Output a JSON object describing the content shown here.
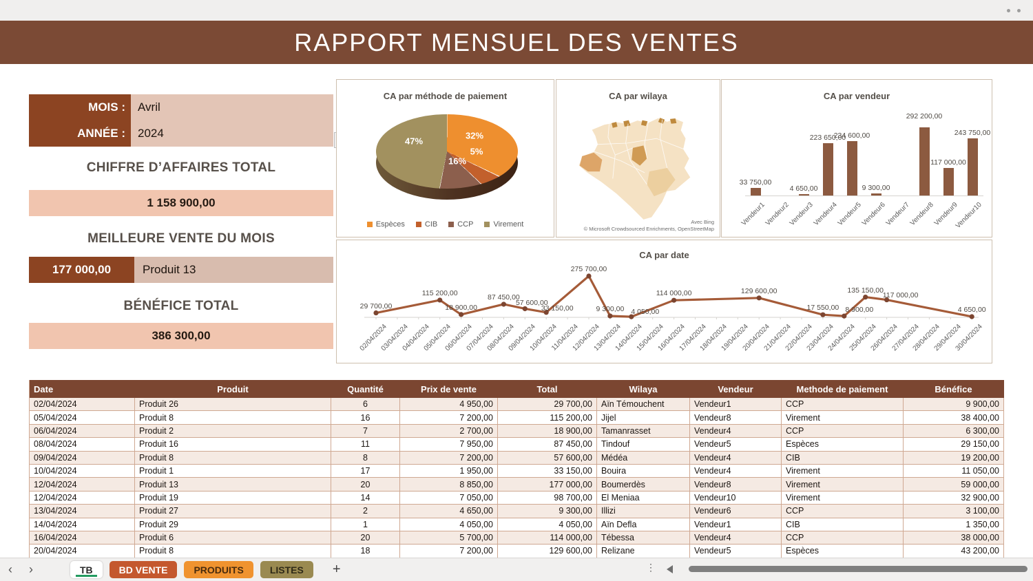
{
  "window": {
    "title_bar_dots": "window-control-dots"
  },
  "header": {
    "title": "RAPPORT MENSUEL DES VENTES"
  },
  "summary": {
    "mois_label": "MOIS :",
    "mois_value": "Avril",
    "annee_label": "ANNÉE :",
    "annee_value": "2024",
    "ca_title": "CHIFFRE D’AFFAIRES TOTAL",
    "ca_value": "1 158 900,00",
    "best_title": "MEILLEURE VENTE DU MOIS",
    "best_value": "177 000,00",
    "best_product": "Produit 13",
    "benefice_title": "BÉNÉFICE TOTAL",
    "benefice_value": "386 300,00"
  },
  "chart_data": [
    {
      "type": "pie",
      "title": "CA par méthode de paiement",
      "labels": [
        "Espèces",
        "CIB",
        "CCP",
        "Virement"
      ],
      "values": [
        32,
        5,
        16,
        47
      ],
      "value_labels": [
        "32%",
        "5%",
        "16%",
        "47%"
      ],
      "colors": [
        "#ee8f2f",
        "#c2602c",
        "#8c5f4d",
        "#a2915f"
      ],
      "legend_position": "bottom",
      "style": "3d-pie"
    },
    {
      "type": "map",
      "title": "CA par wilaya",
      "region": "Algérie",
      "attribution_1": "Avec Bing",
      "attribution_2": "© Microsoft Crowdsourced Enrichments, OpenStreetMap"
    },
    {
      "type": "bar",
      "title": "CA par vendeur",
      "categories": [
        "Vendeur1",
        "Vendeur2",
        "Vendeur3",
        "Vendeur4",
        "Vendeur5",
        "Vendeur6",
        "Vendeur7",
        "Vendeur8",
        "Vendeur9",
        "Vendeur10"
      ],
      "values": [
        33750,
        0,
        4650,
        223650,
        234600,
        9300,
        0,
        292200,
        117000,
        243750
      ],
      "data_labels": [
        "33 750,00",
        null,
        "4 650,00",
        "223 650,00",
        "234 600,00",
        "9 300,00",
        null,
        "292 200,00",
        "117 000,00",
        "243 750,00"
      ],
      "bar_color": "#8c5a40",
      "ylim": [
        0,
        292200
      ],
      "grid": false
    },
    {
      "type": "line",
      "title": "CA par date",
      "x": [
        "02/04/2024",
        "03/04/2024",
        "04/04/2024",
        "05/04/2024",
        "06/04/2024",
        "07/04/2024",
        "08/04/2024",
        "09/04/2024",
        "10/04/2024",
        "11/04/2024",
        "12/04/2024",
        "13/04/2024",
        "14/04/2024",
        "15/04/2024",
        "16/04/2024",
        "17/04/2024",
        "18/04/2024",
        "19/04/2024",
        "20/04/2024",
        "21/04/2024",
        "22/04/2024",
        "23/04/2024",
        "24/04/2024",
        "25/04/2024",
        "26/04/2024",
        "27/04/2024",
        "28/04/2024",
        "29/04/2024",
        "30/04/2024"
      ],
      "points": [
        {
          "x": "02/04/2024",
          "y": 29700,
          "label": "29 700,00"
        },
        {
          "x": "05/04/2024",
          "y": 115200,
          "label": "115 200,00"
        },
        {
          "x": "06/04/2024",
          "y": 18900,
          "label": "18 900,00"
        },
        {
          "x": "08/04/2024",
          "y": 87450,
          "label": "87 450,00"
        },
        {
          "x": "09/04/2024",
          "y": 57600,
          "label": "57 600,00"
        },
        {
          "x": "10/04/2024",
          "y": 33150,
          "label": "33 150,00"
        },
        {
          "x": "12/04/2024",
          "y": 275700,
          "label": "275 700,00"
        },
        {
          "x": "13/04/2024",
          "y": 9300,
          "label": "9 300,00"
        },
        {
          "x": "14/04/2024",
          "y": 4050,
          "label": "4 050,00"
        },
        {
          "x": "16/04/2024",
          "y": 114000,
          "label": "114 000,00"
        },
        {
          "x": "20/04/2024",
          "y": 129600,
          "label": "129 600,00"
        },
        {
          "x": "23/04/2024",
          "y": 17550,
          "label": "17 550,00"
        },
        {
          "x": "24/04/2024",
          "y": 8900,
          "label": "8 900,00"
        },
        {
          "x": "25/04/2024",
          "y": 135150,
          "label": "135 150,00"
        },
        {
          "x": "26/04/2024",
          "y": 117000,
          "label": "117 000,00"
        },
        {
          "x": "30/04/2024",
          "y": 4650,
          "label": "4 650,00"
        }
      ],
      "line_color": "#a55b38",
      "marker_color": "#7c4530",
      "grid": false
    }
  ],
  "table": {
    "headers": [
      "Date",
      "Produit",
      "Quantité",
      "Prix de vente",
      "Total",
      "Wilaya",
      "Vendeur",
      "Methode de paiement",
      "Bénéfice"
    ],
    "aligns": [
      "al",
      "al",
      "ac",
      "ar",
      "ar",
      "al",
      "al",
      "al",
      "ar"
    ],
    "header_aligns": [
      "al",
      "ac",
      "ac",
      "ac",
      "ac",
      "ac",
      "ac",
      "ac",
      "ac"
    ],
    "rows": [
      [
        "02/04/2024",
        "Produit 26",
        "6",
        "4 950,00",
        "29 700,00",
        "Aïn Témouchent",
        "Vendeur1",
        "CCP",
        "9 900,00"
      ],
      [
        "05/04/2024",
        "Produit 8",
        "16",
        "7 200,00",
        "115 200,00",
        "Jijel",
        "Vendeur8",
        "Virement",
        "38 400,00"
      ],
      [
        "06/04/2024",
        "Produit 2",
        "7",
        "2 700,00",
        "18 900,00",
        "Tamanrasset",
        "Vendeur4",
        "CCP",
        "6 300,00"
      ],
      [
        "08/04/2024",
        "Produit 16",
        "11",
        "7 950,00",
        "87 450,00",
        "Tindouf",
        "Vendeur5",
        "Espèces",
        "29 150,00"
      ],
      [
        "09/04/2024",
        "Produit 8",
        "8",
        "7 200,00",
        "57 600,00",
        "Médéa",
        "Vendeur4",
        "CIB",
        "19 200,00"
      ],
      [
        "10/04/2024",
        "Produit 1",
        "17",
        "1 950,00",
        "33 150,00",
        "Bouira",
        "Vendeur4",
        "Virement",
        "11 050,00"
      ],
      [
        "12/04/2024",
        "Produit 13",
        "20",
        "8 850,00",
        "177 000,00",
        "Boumerdès",
        "Vendeur8",
        "Virement",
        "59 000,00"
      ],
      [
        "12/04/2024",
        "Produit 19",
        "14",
        "7 050,00",
        "98 700,00",
        "El Meniaa",
        "Vendeur10",
        "Virement",
        "32 900,00"
      ],
      [
        "13/04/2024",
        "Produit 27",
        "2",
        "4 650,00",
        "9 300,00",
        "Illizi",
        "Vendeur6",
        "CCP",
        "3 100,00"
      ],
      [
        "14/04/2024",
        "Produit 29",
        "1",
        "4 050,00",
        "4 050,00",
        "Aïn Defla",
        "Vendeur1",
        "CIB",
        "1 350,00"
      ],
      [
        "16/04/2024",
        "Produit 6",
        "20",
        "5 700,00",
        "114 000,00",
        "Tébessa",
        "Vendeur4",
        "CCP",
        "38 000,00"
      ],
      [
        "20/04/2024",
        "Produit 8",
        "18",
        "7 200,00",
        "129 600,00",
        "Relizane",
        "Vendeur5",
        "Espèces",
        "43 200,00"
      ]
    ]
  },
  "sheet_tabs": {
    "tabs": [
      {
        "label": "TB",
        "active": true,
        "bg": "#ffffff",
        "fg": "#2b2b2b"
      },
      {
        "label": "BD VENTE",
        "active": false,
        "bg": "#c4582e",
        "fg": "#ffffff"
      },
      {
        "label": "PRODUITS",
        "active": false,
        "bg": "#f0932f",
        "fg": "#4a2c0e"
      },
      {
        "label": "LISTES",
        "active": false,
        "bg": "#9a8a51",
        "fg": "#2f2a18"
      }
    ],
    "add_label": "+"
  },
  "colors": {
    "banner_bg": "#7b4a35",
    "label_cell": "#8c4422",
    "value_cell": "#e3c5b6",
    "accent_bar": "#f1c5af",
    "table_header_bg": "#7b4631",
    "row_alt": "#f5eae3",
    "active_tab_underline": "#239a60"
  }
}
